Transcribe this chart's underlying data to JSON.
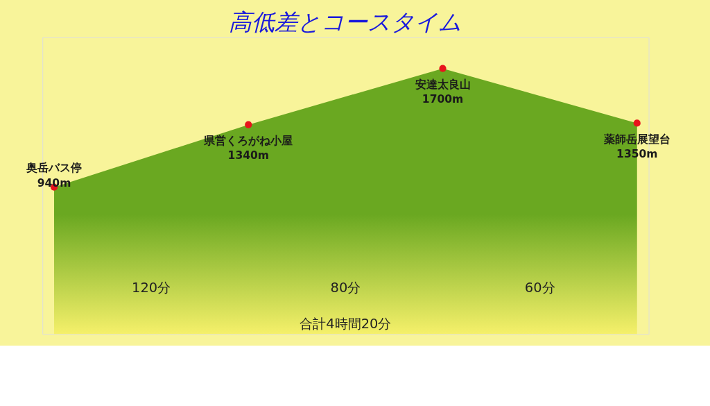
{
  "chart_data": {
    "type": "area",
    "title": "高低差とコースタイム",
    "categories": [
      "奥岳バス停",
      "県営くろがね小屋",
      "安達太良山",
      "薬師岳展望台"
    ],
    "series": [
      {
        "color": "#6aa821",
        "values": [
          940,
          1340,
          1700,
          1350
        ],
        "value_labels": [
          "940m",
          "1340m",
          "1700m",
          "1350m"
        ]
      }
    ],
    "ylim": [
      0,
      1900
    ],
    "tick_labels": false,
    "marker": "circle",
    "annotations": [
      "120分",
      "80分",
      "60分",
      "合計4時間20分"
    ]
  }
}
